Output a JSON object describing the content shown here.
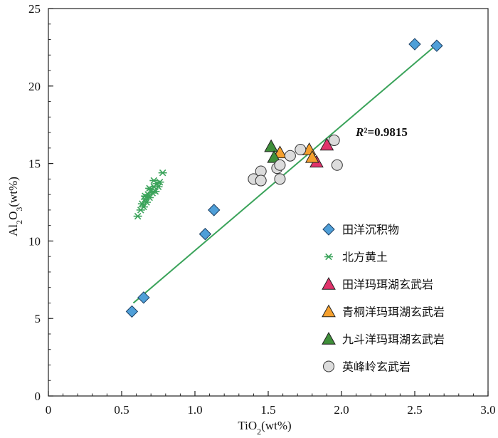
{
  "chart_data": {
    "type": "scatter",
    "xlabel": "TiO2(wt%)",
    "ylabel": "Al2O3(wt%)",
    "xlim": [
      0,
      3.0
    ],
    "ylim": [
      0,
      25
    ],
    "x_ticks": [
      "0",
      "0.5",
      "1.0",
      "1.5",
      "2.0",
      "2.5",
      "3.0"
    ],
    "y_ticks": [
      "0",
      "5",
      "10",
      "15",
      "20",
      "25"
    ],
    "grid": false,
    "legend_position": "bottom-right",
    "annotation": {
      "text": "R²=0.9815",
      "italic_part": "R"
    },
    "trendline": {
      "x": [
        0.58,
        2.64
      ],
      "y": [
        6.0,
        22.6
      ],
      "color": "#3aa35a"
    },
    "series": [
      {
        "name": "田洋沉积物",
        "marker": "diamond",
        "color": "#4f9fd8",
        "points": [
          [
            0.57,
            5.45
          ],
          [
            0.65,
            6.35
          ],
          [
            1.07,
            10.45
          ],
          [
            1.13,
            12.0
          ],
          [
            2.5,
            22.7
          ],
          [
            2.65,
            22.6
          ]
        ]
      },
      {
        "name": "北方黄土",
        "marker": "asterisk",
        "color": "#3aa35a",
        "points": [
          [
            0.61,
            11.6
          ],
          [
            0.63,
            12.0
          ],
          [
            0.64,
            12.4
          ],
          [
            0.65,
            12.2
          ],
          [
            0.66,
            12.7
          ],
          [
            0.67,
            12.5
          ],
          [
            0.68,
            13.0
          ],
          [
            0.69,
            12.8
          ],
          [
            0.7,
            13.3
          ],
          [
            0.71,
            13.1
          ],
          [
            0.72,
            13.5
          ],
          [
            0.73,
            13.2
          ],
          [
            0.74,
            13.7
          ],
          [
            0.75,
            13.5
          ],
          [
            0.76,
            13.8
          ],
          [
            0.78,
            14.4
          ],
          [
            0.66,
            12.9
          ],
          [
            0.69,
            13.4
          ],
          [
            0.72,
            13.9
          ]
        ]
      },
      {
        "name": "田洋玛珥湖玄武岩",
        "marker": "triangle",
        "color": "#e0336b",
        "points": [
          [
            1.9,
            16.2
          ],
          [
            1.83,
            15.1
          ]
        ]
      },
      {
        "name": "青桐洋玛珥湖玄武岩",
        "marker": "triangle",
        "color": "#f5a02e",
        "points": [
          [
            1.58,
            15.7
          ],
          [
            1.78,
            15.9
          ],
          [
            1.8,
            15.4
          ]
        ]
      },
      {
        "name": "九斗洋玛珥湖玄武岩",
        "marker": "triangle",
        "color": "#3f8f3a",
        "points": [
          [
            1.52,
            16.1
          ],
          [
            1.54,
            15.4
          ]
        ]
      },
      {
        "name": "英峰岭玄武岩",
        "marker": "circle",
        "color": "#dcdcdc",
        "points": [
          [
            1.4,
            14.0
          ],
          [
            1.45,
            14.5
          ],
          [
            1.45,
            13.9
          ],
          [
            1.56,
            14.7
          ],
          [
            1.58,
            14.9
          ],
          [
            1.58,
            14.0
          ],
          [
            1.65,
            15.5
          ],
          [
            1.72,
            15.9
          ],
          [
            1.95,
            16.5
          ],
          [
            1.97,
            14.9
          ]
        ]
      }
    ]
  }
}
